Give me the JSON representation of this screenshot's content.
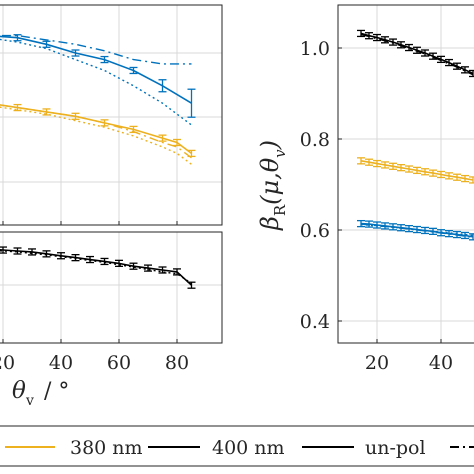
{
  "colors": {
    "blue": "#0072bd",
    "orange": "#edb120",
    "black": "#000000",
    "grid": "#d9d9d9",
    "axis": "#262626"
  },
  "chart_data": [
    {
      "type": "line",
      "panel": "left-top",
      "x_range": [
        0,
        90
      ],
      "y_range": [
        0,
        1
      ],
      "grid": true,
      "x_ticks": [
        20,
        40,
        60,
        80
      ],
      "series": [
        {
          "color_key": "blue",
          "style": "solid",
          "errorbars": true,
          "x": [
            0,
            15,
            25,
            35,
            45,
            55,
            65,
            75,
            85
          ],
          "y": [
            0.87,
            0.86,
            0.85,
            0.82,
            0.78,
            0.75,
            0.7,
            0.63,
            0.55
          ]
        },
        {
          "color_key": "blue",
          "style": "dashdot",
          "x": [
            0,
            15,
            25,
            35,
            45,
            55,
            65,
            75,
            85
          ],
          "y": [
            0.87,
            0.86,
            0.86,
            0.84,
            0.82,
            0.79,
            0.75,
            0.73,
            0.73
          ]
        },
        {
          "color_key": "blue",
          "style": "dotted",
          "x": [
            0,
            15,
            25,
            35,
            45,
            55,
            65,
            75,
            85
          ],
          "y": [
            0.87,
            0.85,
            0.83,
            0.8,
            0.75,
            0.7,
            0.63,
            0.55,
            0.45
          ]
        },
        {
          "color_key": "orange",
          "style": "solid",
          "errorbars": true,
          "x": [
            0,
            15,
            25,
            35,
            45,
            55,
            65,
            75,
            80,
            85
          ],
          "y": [
            0.57,
            0.55,
            0.53,
            0.51,
            0.49,
            0.46,
            0.43,
            0.39,
            0.37,
            0.32
          ]
        },
        {
          "color_key": "orange",
          "style": "dashdot",
          "x": [
            0,
            15,
            25,
            35,
            45,
            55,
            65,
            75,
            80,
            85
          ],
          "y": [
            0.57,
            0.55,
            0.53,
            0.51,
            0.49,
            0.46,
            0.42,
            0.37,
            0.35,
            0.3
          ]
        },
        {
          "color_key": "orange",
          "style": "dotted",
          "x": [
            0,
            15,
            25,
            35,
            45,
            55,
            65,
            75,
            80,
            85
          ],
          "y": [
            0.56,
            0.54,
            0.52,
            0.5,
            0.47,
            0.44,
            0.4,
            0.35,
            0.32,
            0.27
          ]
        }
      ]
    },
    {
      "type": "line",
      "panel": "left-bottom",
      "x_range": [
        0,
        90
      ],
      "y_range": [
        0,
        1
      ],
      "grid": true,
      "x_ticks": [
        20,
        40,
        60,
        80
      ],
      "x_tick_labels": [
        "20",
        "40",
        "60",
        "80"
      ],
      "series": [
        {
          "color_key": "black",
          "style": "solid",
          "errorbars": true,
          "x": [
            0,
            15,
            20,
            25,
            30,
            35,
            40,
            45,
            50,
            55,
            60,
            65,
            70,
            75,
            80,
            85
          ],
          "y": [
            0.83,
            0.82,
            0.81,
            0.8,
            0.79,
            0.77,
            0.75,
            0.73,
            0.71,
            0.69,
            0.67,
            0.64,
            0.62,
            0.6,
            0.58,
            0.44
          ]
        },
        {
          "color_key": "black",
          "style": "dotted",
          "x": [
            0,
            15,
            25,
            35,
            45,
            55,
            65,
            75,
            80,
            85
          ],
          "y": [
            0.83,
            0.81,
            0.79,
            0.76,
            0.72,
            0.68,
            0.63,
            0.58,
            0.56,
            0.46
          ]
        }
      ]
    },
    {
      "type": "line",
      "panel": "right",
      "x_range": [
        10,
        50
      ],
      "y_range": [
        0.38,
        1.1
      ],
      "grid": true,
      "x_ticks": [
        20,
        40
      ],
      "x_tick_labels": [
        "20",
        "40"
      ],
      "y_ticks": [
        0.4,
        0.6,
        0.8,
        1.0
      ],
      "y_tick_labels": [
        "0.4",
        "0.6",
        "0.8",
        "1.0"
      ],
      "ylabel": "β_R(μ,θ_v)",
      "series": [
        {
          "color_key": "black",
          "style": "solid",
          "errorbars": true,
          "x": [
            15,
            17.5,
            20,
            22.5,
            25,
            27.5,
            30,
            32.5,
            35,
            37.5,
            40,
            42.5,
            45,
            47.5,
            50
          ],
          "y": [
            1.032,
            1.027,
            1.023,
            1.018,
            1.013,
            1.007,
            1.001,
            0.995,
            0.989,
            0.982,
            0.975,
            0.968,
            0.96,
            0.952,
            0.944
          ]
        },
        {
          "color_key": "black",
          "style": "dashdot",
          "x": [
            15,
            25,
            35,
            45,
            50
          ],
          "y": [
            1.03,
            1.011,
            0.987,
            0.958,
            0.941
          ]
        },
        {
          "color_key": "orange",
          "style": "solid",
          "errorbars": true,
          "x": [
            15,
            17.5,
            20,
            22.5,
            25,
            27.5,
            30,
            32.5,
            35,
            37.5,
            40,
            42.5,
            45,
            47.5,
            50
          ],
          "y": [
            0.752,
            0.749,
            0.746,
            0.743,
            0.74,
            0.737,
            0.734,
            0.731,
            0.728,
            0.725,
            0.722,
            0.719,
            0.716,
            0.713,
            0.71
          ]
        },
        {
          "color_key": "blue",
          "style": "solid",
          "errorbars": true,
          "x": [
            15,
            17.5,
            20,
            22.5,
            25,
            27.5,
            30,
            32.5,
            35,
            37.5,
            40,
            42.5,
            45,
            47.5,
            50
          ],
          "y": [
            0.614,
            0.613,
            0.611,
            0.609,
            0.607,
            0.605,
            0.603,
            0.601,
            0.599,
            0.597,
            0.594,
            0.592,
            0.59,
            0.588,
            0.585
          ]
        },
        {
          "color_key": "blue",
          "style": "dashdot",
          "x": [
            15,
            25,
            35,
            45,
            50
          ],
          "y": [
            0.613,
            0.606,
            0.598,
            0.589,
            0.584
          ]
        },
        {
          "color_key": "blue",
          "style": "dotted",
          "x": [
            15,
            25,
            35,
            45,
            50
          ],
          "y": [
            0.612,
            0.606,
            0.599,
            0.592,
            0.588
          ]
        }
      ]
    }
  ],
  "xlabel": {
    "symbol": "θ",
    "subscript": "v",
    "unit": "/ °"
  },
  "legend": [
    {
      "label": "380 nm",
      "color_key": "orange",
      "style": "solid"
    },
    {
      "label": "400 nm",
      "color_key": "black",
      "style": "solid"
    },
    {
      "label": "un-pol",
      "color_key": "black",
      "style": "solid"
    },
    {
      "label": "",
      "color_key": "black",
      "style": "dashdot"
    }
  ]
}
